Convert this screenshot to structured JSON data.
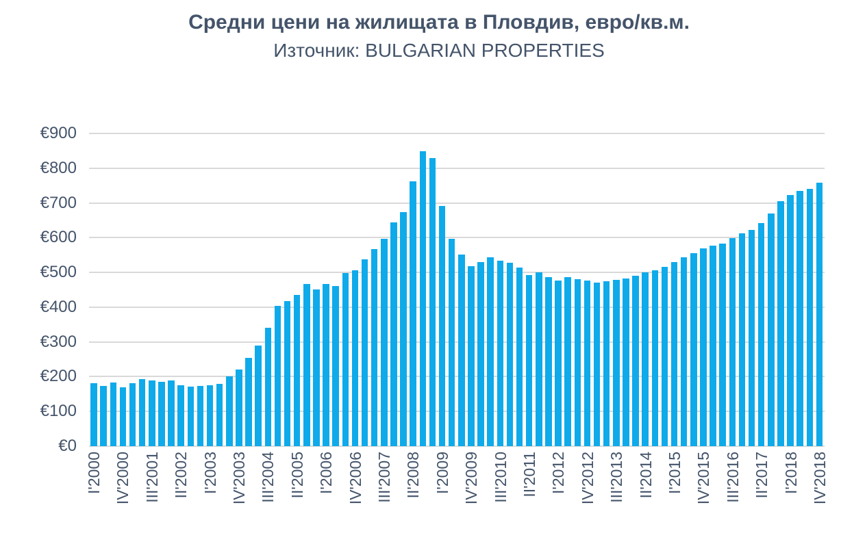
{
  "header": {
    "title": "Средни цени на жилищата в Пловдив, евро/кв.м.",
    "subtitle": "Източник: BULGARIAN PROPERTIES"
  },
  "colors": {
    "background": "#ffffff",
    "bar": "#0faaea",
    "grid": "#d9d9d9",
    "axis_text": "#44546a",
    "title_text": "#44546a"
  },
  "chart_data": {
    "type": "bar",
    "title": "Средни цени на жилищата в Пловдив, евро/кв.м.",
    "subtitle": "Източник: BULGARIAN PROPERTIES",
    "ylim": [
      0,
      900
    ],
    "grid": true,
    "legend": false,
    "y_ticks": [
      {
        "value": 0,
        "label": "€0"
      },
      {
        "value": 100,
        "label": "€100"
      },
      {
        "value": 200,
        "label": "€200"
      },
      {
        "value": 300,
        "label": "€300"
      },
      {
        "value": 400,
        "label": "€400"
      },
      {
        "value": 500,
        "label": "€500"
      },
      {
        "value": 600,
        "label": "€600"
      },
      {
        "value": 700,
        "label": "€700"
      },
      {
        "value": 800,
        "label": "€800"
      },
      {
        "value": 900,
        "label": "€900"
      }
    ],
    "x_tick_every": 3,
    "x_tick_labels": [
      "I'2000",
      "IV'2000",
      "III'2001",
      "II'2002",
      "I'2003",
      "IV'2003",
      "III'2004",
      "II'2005",
      "I'2006",
      "IV'2006",
      "III'2007",
      "II'2008",
      "I'2009",
      "IV'2009",
      "III'2010",
      "II'2011",
      "I'2012",
      "IV'2012",
      "III'2013",
      "II'2014",
      "I'2015",
      "IV'2015",
      "III'2016",
      "II'2017",
      "I'2018",
      "IV'2018"
    ],
    "values": [
      181,
      174,
      183,
      169,
      181,
      194,
      190,
      185,
      189,
      176,
      172,
      174,
      176,
      179,
      200,
      221,
      254,
      290,
      341,
      403,
      418,
      436,
      466,
      452,
      466,
      461,
      498,
      507,
      537,
      568,
      596,
      645,
      674,
      763,
      848,
      830,
      692,
      596,
      551,
      519,
      530,
      544,
      533,
      527,
      515,
      492,
      501,
      486,
      476,
      487,
      480,
      476,
      471,
      474,
      478,
      483,
      490,
      500,
      507,
      517,
      530,
      544,
      556,
      570,
      577,
      584,
      598,
      612,
      623,
      643,
      670,
      705,
      723,
      735,
      741,
      759
    ]
  }
}
